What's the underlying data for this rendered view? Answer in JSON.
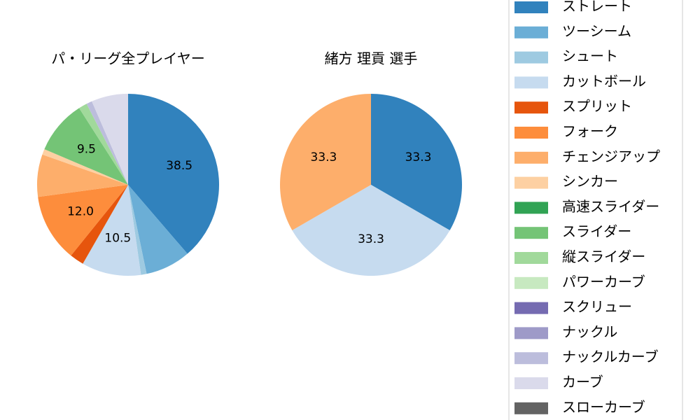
{
  "chart_data": [
    {
      "type": "pie",
      "title": "パ・リーグ全プレイヤー",
      "categories": [
        "ストレート",
        "ツーシーム",
        "シュート",
        "カットボール",
        "スプリット",
        "フォーク",
        "チェンジアップ",
        "シンカー",
        "高速スライダー",
        "スライダー",
        "縦スライダー",
        "パワーカーブ",
        "スクリュー",
        "ナックル",
        "ナックルカーブ",
        "カーブ",
        "スローカーブ"
      ],
      "values": [
        38.5,
        8.0,
        1.0,
        10.5,
        2.5,
        12.0,
        7.5,
        1.0,
        0,
        9.5,
        1.5,
        0,
        0,
        0,
        1.0,
        6.5,
        0
      ],
      "value_labels": [
        "38.5",
        null,
        null,
        "10.5",
        null,
        "12.0",
        null,
        null,
        null,
        "9.5",
        null,
        null,
        null,
        null,
        null,
        null,
        null
      ],
      "colors": [
        "#3182bd",
        "#6baed6",
        "#9ecae1",
        "#c6dbef",
        "#e6550d",
        "#fd8d3c",
        "#fdae6b",
        "#fdd0a2",
        "#31a354",
        "#74c476",
        "#a1d99b",
        "#c7e9c0",
        "#756bb1",
        "#9e9ac8",
        "#bcbddc",
        "#dadaeb",
        "#636363"
      ]
    },
    {
      "type": "pie",
      "title": "緒方 理貢  選手",
      "categories": [
        "ストレート",
        "カットボール",
        "チェンジアップ"
      ],
      "values": [
        33.3,
        33.3,
        33.3
      ],
      "value_labels": [
        "33.3",
        "33.3",
        "33.3"
      ],
      "colors": [
        "#3182bd",
        "#c6dbef",
        "#fdae6b"
      ]
    }
  ]
}
